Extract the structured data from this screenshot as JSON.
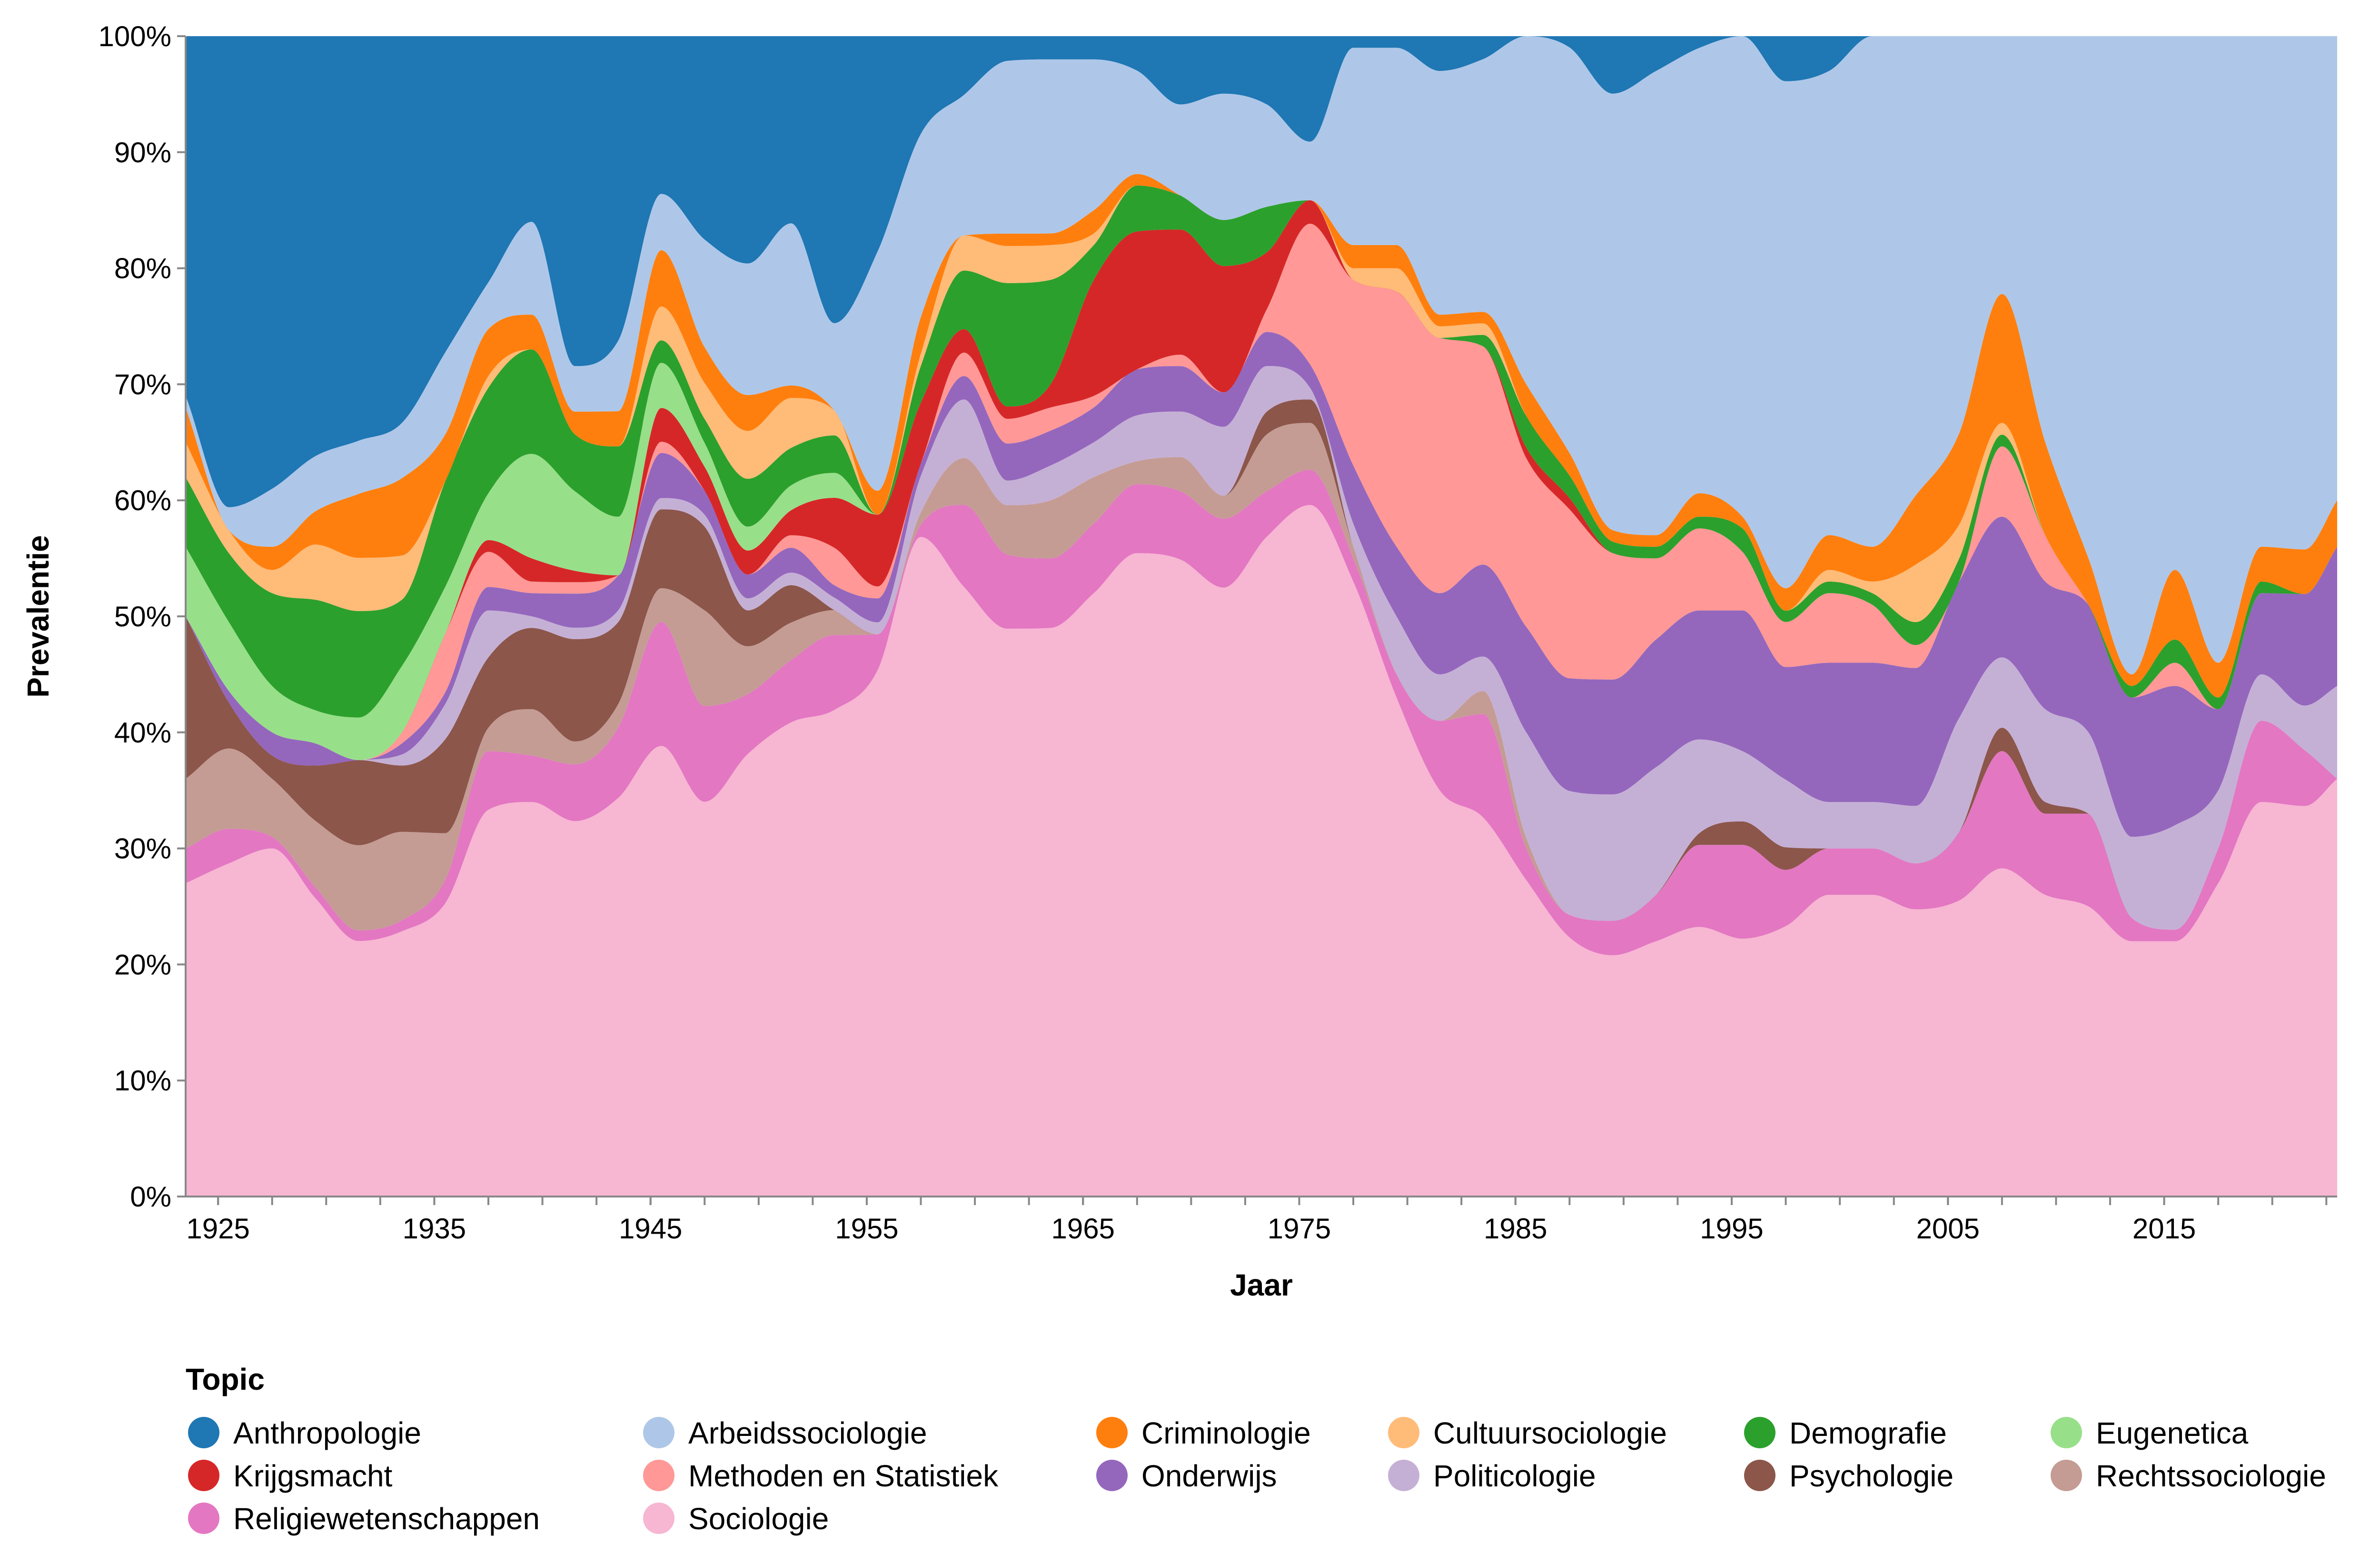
{
  "chart_data": {
    "type": "area",
    "stacked": "normalize",
    "interpolation": "smooth",
    "xlabel": "Jaar",
    "ylabel": "Prevalentie",
    "xlim": [
      1923.5,
      2023
    ],
    "ylim": [
      0,
      1
    ],
    "x_ticks": [
      1925,
      1935,
      1945,
      1955,
      1965,
      1975,
      1985,
      1995,
      2005,
      2015
    ],
    "y_ticks": [
      "0%",
      "10%",
      "20%",
      "30%",
      "40%",
      "50%",
      "60%",
      "70%",
      "80%",
      "90%",
      "100%"
    ],
    "grid": false,
    "legend": {
      "title": "Topic",
      "placement": "bottom-left",
      "columns": 6
    },
    "x": [
      1923.5,
      1925.5,
      1927.5,
      1929.5,
      1931.5,
      1933.5,
      1935.5,
      1937.5,
      1939.5,
      1941.5,
      1943.5,
      1945.5,
      1947.5,
      1949.5,
      1951.5,
      1953.5,
      1955.5,
      1957.5,
      1959.5,
      1961.5,
      1963.5,
      1965.5,
      1967.5,
      1969.5,
      1971.5,
      1973.5,
      1975.5,
      1977.5,
      1979.5,
      1981.5,
      1983.5,
      1985.5,
      1987.5,
      1989.5,
      1991.5,
      1993.5,
      1995.5,
      1997.5,
      1999.5,
      2001.5,
      2003.5,
      2005.5,
      2007.5,
      2009.5,
      2011.5,
      2013.5,
      2015.5,
      2017.5,
      2019.5,
      2021.5,
      2023
    ],
    "series": [
      {
        "name": "Sociologie",
        "color": "#f7b6d2",
        "values": [
          0.27,
          0.29,
          0.3,
          0.27,
          0.24,
          0.24,
          0.25,
          0.33,
          0.34,
          0.33,
          0.34,
          0.4,
          0.33,
          0.37,
          0.38,
          0.39,
          0.44,
          0.54,
          0.52,
          0.46,
          0.49,
          0.52,
          0.56,
          0.56,
          0.53,
          0.58,
          0.59,
          0.53,
          0.43,
          0.35,
          0.33,
          0.3,
          0.23,
          0.21,
          0.22,
          0.23,
          0.22,
          0.24,
          0.26,
          0.26,
          0.25,
          0.26,
          0.28,
          0.26,
          0.25,
          0.22,
          0.22,
          0.27,
          0.34,
          0.35,
          0.36
        ]
      },
      {
        "name": "Religiewetenschappen",
        "color": "#e377c2",
        "values": [
          0.03,
          0.03,
          0.01,
          0.01,
          0.01,
          0.01,
          0.02,
          0.05,
          0.04,
          0.05,
          0.06,
          0.11,
          0.08,
          0.05,
          0.05,
          0.06,
          0.03,
          0.01,
          0.07,
          0.06,
          0.06,
          0.06,
          0.06,
          0.06,
          0.06,
          0.04,
          0.03,
          0.02,
          0.02,
          0.06,
          0.09,
          0.03,
          0.02,
          0.03,
          0.04,
          0.07,
          0.08,
          0.05,
          0.04,
          0.04,
          0.04,
          0.06,
          0.1,
          0.07,
          0.08,
          0.02,
          0.01,
          0.03,
          0.07,
          0.05,
          0.0
        ]
      },
      {
        "name": "Rechtssociologie",
        "color": "#c49c94",
        "values": [
          0.06,
          0.07,
          0.05,
          0.06,
          0.08,
          0.08,
          0.04,
          0.02,
          0.04,
          0.02,
          0.02,
          0.03,
          0.08,
          0.04,
          0.03,
          0.02,
          0.0,
          0.01,
          0.04,
          0.04,
          0.05,
          0.04,
          0.02,
          0.03,
          0.02,
          0.05,
          0.04,
          0.01,
          0.0,
          0.0,
          0.02,
          0.01,
          0.0,
          0.0,
          0.0,
          0.0,
          0.0,
          0.0,
          0.0,
          0.0,
          0.0,
          0.0,
          0.0,
          0.0,
          0.0,
          0.0,
          0.0,
          0.0,
          0.0,
          0.0,
          0.0
        ]
      },
      {
        "name": "Psychologie",
        "color": "#8c564b",
        "values": [
          0.14,
          0.04,
          0.02,
          0.05,
          0.08,
          0.06,
          0.08,
          0.06,
          0.07,
          0.09,
          0.07,
          0.07,
          0.07,
          0.03,
          0.03,
          0.0,
          0.0,
          0.0,
          0.0,
          0.0,
          0.0,
          0.0,
          0.0,
          0.0,
          0.0,
          0.02,
          0.02,
          0.0,
          0.0,
          0.0,
          0.0,
          0.0,
          0.0,
          0.0,
          0.0,
          0.01,
          0.02,
          0.02,
          0.0,
          0.0,
          0.0,
          0.0,
          0.02,
          0.01,
          0.0,
          0.0,
          0.0,
          0.0,
          0.0,
          0.0,
          0.0
        ]
      },
      {
        "name": "Politicologie",
        "color": "#c5b0d5",
        "values": [
          0.0,
          0.0,
          0.0,
          0.0,
          0.0,
          0.01,
          0.03,
          0.04,
          0.01,
          0.01,
          0.01,
          0.01,
          0.01,
          0.01,
          0.01,
          0.01,
          0.01,
          0.03,
          0.05,
          0.02,
          0.03,
          0.03,
          0.04,
          0.04,
          0.06,
          0.04,
          0.01,
          0.02,
          0.05,
          0.04,
          0.03,
          0.1,
          0.11,
          0.11,
          0.11,
          0.08,
          0.06,
          0.06,
          0.04,
          0.04,
          0.05,
          0.1,
          0.06,
          0.08,
          0.07,
          0.07,
          0.09,
          0.05,
          0.04,
          0.04,
          0.08
        ]
      },
      {
        "name": "Onderwijs",
        "color": "#9467bd",
        "values": [
          0.0,
          0.01,
          0.02,
          0.02,
          0.0,
          0.01,
          0.01,
          0.02,
          0.02,
          0.03,
          0.03,
          0.04,
          0.02,
          0.02,
          0.02,
          0.01,
          0.02,
          0.01,
          0.02,
          0.03,
          0.03,
          0.03,
          0.04,
          0.04,
          0.03,
          0.03,
          0.02,
          0.05,
          0.06,
          0.07,
          0.08,
          0.1,
          0.1,
          0.1,
          0.11,
          0.11,
          0.12,
          0.1,
          0.12,
          0.12,
          0.12,
          0.12,
          0.12,
          0.11,
          0.11,
          0.12,
          0.12,
          0.07,
          0.07,
          0.1,
          0.12
        ]
      },
      {
        "name": "Methoden en Statistiek",
        "color": "#ff9896",
        "values": [
          0.0,
          0.0,
          0.0,
          0.0,
          0.0,
          0.01,
          0.05,
          0.03,
          0.01,
          0.01,
          0.0,
          0.01,
          0.0,
          0.0,
          0.01,
          0.03,
          0.01,
          0.0,
          0.02,
          0.02,
          0.02,
          0.01,
          0.0,
          0.01,
          0.0,
          0.02,
          0.12,
          0.16,
          0.22,
          0.22,
          0.19,
          0.16,
          0.15,
          0.11,
          0.07,
          0.07,
          0.05,
          0.04,
          0.06,
          0.05,
          0.02,
          0.0,
          0.06,
          0.04,
          0.0,
          0.0,
          0.02,
          0.0,
          0.0,
          0.0,
          0.0
        ]
      },
      {
        "name": "Krijgsmacht",
        "color": "#d62728",
        "values": [
          0.0,
          0.0,
          0.0,
          0.0,
          0.0,
          0.0,
          0.0,
          0.01,
          0.02,
          0.01,
          0.0,
          0.03,
          0.02,
          0.02,
          0.02,
          0.04,
          0.06,
          0.05,
          0.02,
          0.01,
          0.02,
          0.1,
          0.12,
          0.11,
          0.11,
          0.05,
          0.02,
          0.0,
          0.0,
          0.0,
          0.0,
          0.01,
          0.01,
          0.0,
          0.0,
          0.0,
          0.0,
          0.0,
          0.0,
          0.0,
          0.0,
          0.0,
          0.0,
          0.0,
          0.0,
          0.0,
          0.0,
          0.0,
          0.0,
          0.0,
          0.0
        ]
      },
      {
        "name": "Eugenetica",
        "color": "#98df8a",
        "values": [
          0.06,
          0.06,
          0.04,
          0.03,
          0.04,
          0.06,
          0.04,
          0.04,
          0.09,
          0.07,
          0.05,
          0.04,
          0.02,
          0.02,
          0.02,
          0.02,
          0.0,
          0.0,
          0.0,
          0.0,
          0.0,
          0.0,
          0.0,
          0.0,
          0.0,
          0.0,
          0.0,
          0.0,
          0.0,
          0.0,
          0.0,
          0.0,
          0.0,
          0.0,
          0.0,
          0.0,
          0.0,
          0.0,
          0.0,
          0.0,
          0.0,
          0.0,
          0.0,
          0.0,
          0.0,
          0.0,
          0.0,
          0.0,
          0.0,
          0.0,
          0.0
        ]
      },
      {
        "name": "Demografie",
        "color": "#2ca02c",
        "values": [
          0.06,
          0.06,
          0.08,
          0.1,
          0.1,
          0.06,
          0.09,
          0.09,
          0.09,
          0.05,
          0.06,
          0.02,
          0.02,
          0.04,
          0.03,
          0.03,
          0.0,
          0.03,
          0.05,
          0.1,
          0.09,
          0.03,
          0.04,
          0.03,
          0.04,
          0.04,
          0.0,
          0.0,
          0.0,
          0.0,
          0.01,
          0.03,
          0.02,
          0.01,
          0.01,
          0.01,
          0.02,
          0.01,
          0.01,
          0.01,
          0.02,
          0.02,
          0.01,
          0.0,
          0.0,
          0.01,
          0.02,
          0.01,
          0.01,
          0.0,
          0.0
        ]
      },
      {
        "name": "Cultuursociologie",
        "color": "#ffbb78",
        "values": [
          0.03,
          0.02,
          0.02,
          0.05,
          0.05,
          0.04,
          0.0,
          0.01,
          0.0,
          0.0,
          0.0,
          0.03,
          0.03,
          0.04,
          0.04,
          0.02,
          0.0,
          0.01,
          0.03,
          0.03,
          0.03,
          0.01,
          0.0,
          0.0,
          0.0,
          0.0,
          0.0,
          0.01,
          0.02,
          0.01,
          0.01,
          0.0,
          0.0,
          0.0,
          0.0,
          0.0,
          0.0,
          0.0,
          0.01,
          0.01,
          0.05,
          0.03,
          0.01,
          0.0,
          0.0,
          0.0,
          0.0,
          0.0,
          0.0,
          0.0,
          0.0
        ]
      },
      {
        "name": "Criminologie",
        "color": "#ff7f0e",
        "values": [
          0.03,
          0.0,
          0.02,
          0.03,
          0.06,
          0.07,
          0.04,
          0.04,
          0.03,
          0.02,
          0.03,
          0.05,
          0.03,
          0.03,
          0.01,
          0.0,
          0.02,
          0.03,
          0.0,
          0.01,
          0.01,
          0.02,
          0.01,
          0.0,
          0.0,
          0.0,
          0.0,
          0.02,
          0.02,
          0.01,
          0.01,
          0.03,
          0.02,
          0.01,
          0.01,
          0.02,
          0.01,
          0.02,
          0.03,
          0.03,
          0.06,
          0.08,
          0.11,
          0.08,
          0.04,
          0.01,
          0.06,
          0.03,
          0.03,
          0.04,
          0.04
        ]
      },
      {
        "name": "Arbeidssociologie",
        "color": "#aec7e8",
        "values": [
          0.01,
          0.02,
          0.05,
          0.05,
          0.05,
          0.05,
          0.07,
          0.04,
          0.08,
          0.04,
          0.06,
          0.05,
          0.09,
          0.11,
          0.13,
          0.07,
          0.2,
          0.15,
          0.12,
          0.14,
          0.15,
          0.13,
          0.09,
          0.08,
          0.11,
          0.09,
          0.05,
          0.17,
          0.17,
          0.21,
          0.22,
          0.33,
          0.36,
          0.38,
          0.4,
          0.38,
          0.41,
          0.45,
          0.4,
          0.44,
          0.4,
          0.35,
          0.22,
          0.35,
          0.45,
          0.55,
          0.46,
          0.54,
          0.44,
          0.46,
          0.4
        ]
      },
      {
        "name": "Anthropologie",
        "color": "#1f77b4",
        "values": [
          0.31,
          0.41,
          0.39,
          0.38,
          0.38,
          0.35,
          0.27,
          0.21,
          0.16,
          0.29,
          0.26,
          0.14,
          0.17,
          0.19,
          0.15,
          0.23,
          0.18,
          0.08,
          0.05,
          0.02,
          0.02,
          0.02,
          0.03,
          0.06,
          0.05,
          0.06,
          0.09,
          0.01,
          0.01,
          0.03,
          0.02,
          0.0,
          0.01,
          0.05,
          0.03,
          0.01,
          0.0,
          0.04,
          0.03,
          0.0,
          0.0,
          0.0,
          0.0,
          0.0,
          0.0,
          0.0,
          0.0,
          0.0,
          0.0,
          0.0,
          0.0
        ]
      }
    ]
  },
  "legend": {
    "title": "Topic",
    "items": [
      {
        "label": "Anthropologie",
        "color": "#1f77b4",
        "icon": "circle-swatch"
      },
      {
        "label": "Arbeidssociologie",
        "color": "#aec7e8",
        "icon": "circle-swatch"
      },
      {
        "label": "Criminologie",
        "color": "#ff7f0e",
        "icon": "circle-swatch"
      },
      {
        "label": "Cultuursociologie",
        "color": "#ffbb78",
        "icon": "circle-swatch"
      },
      {
        "label": "Demografie",
        "color": "#2ca02c",
        "icon": "circle-swatch"
      },
      {
        "label": "Eugenetica",
        "color": "#98df8a",
        "icon": "circle-swatch"
      },
      {
        "label": "Krijgsmacht",
        "color": "#d62728",
        "icon": "circle-swatch"
      },
      {
        "label": "Methoden en Statistiek",
        "color": "#ff9896",
        "icon": "circle-swatch"
      },
      {
        "label": "Onderwijs",
        "color": "#9467bd",
        "icon": "circle-swatch"
      },
      {
        "label": "Politicologie",
        "color": "#c5b0d5",
        "icon": "circle-swatch"
      },
      {
        "label": "Psychologie",
        "color": "#8c564b",
        "icon": "circle-swatch"
      },
      {
        "label": "Rechtssociologie",
        "color": "#c49c94",
        "icon": "circle-swatch"
      },
      {
        "label": "Religiewetenschappen",
        "color": "#e377c2",
        "icon": "circle-swatch"
      },
      {
        "label": "Sociologie",
        "color": "#f7b6d2",
        "icon": "circle-swatch"
      }
    ]
  }
}
